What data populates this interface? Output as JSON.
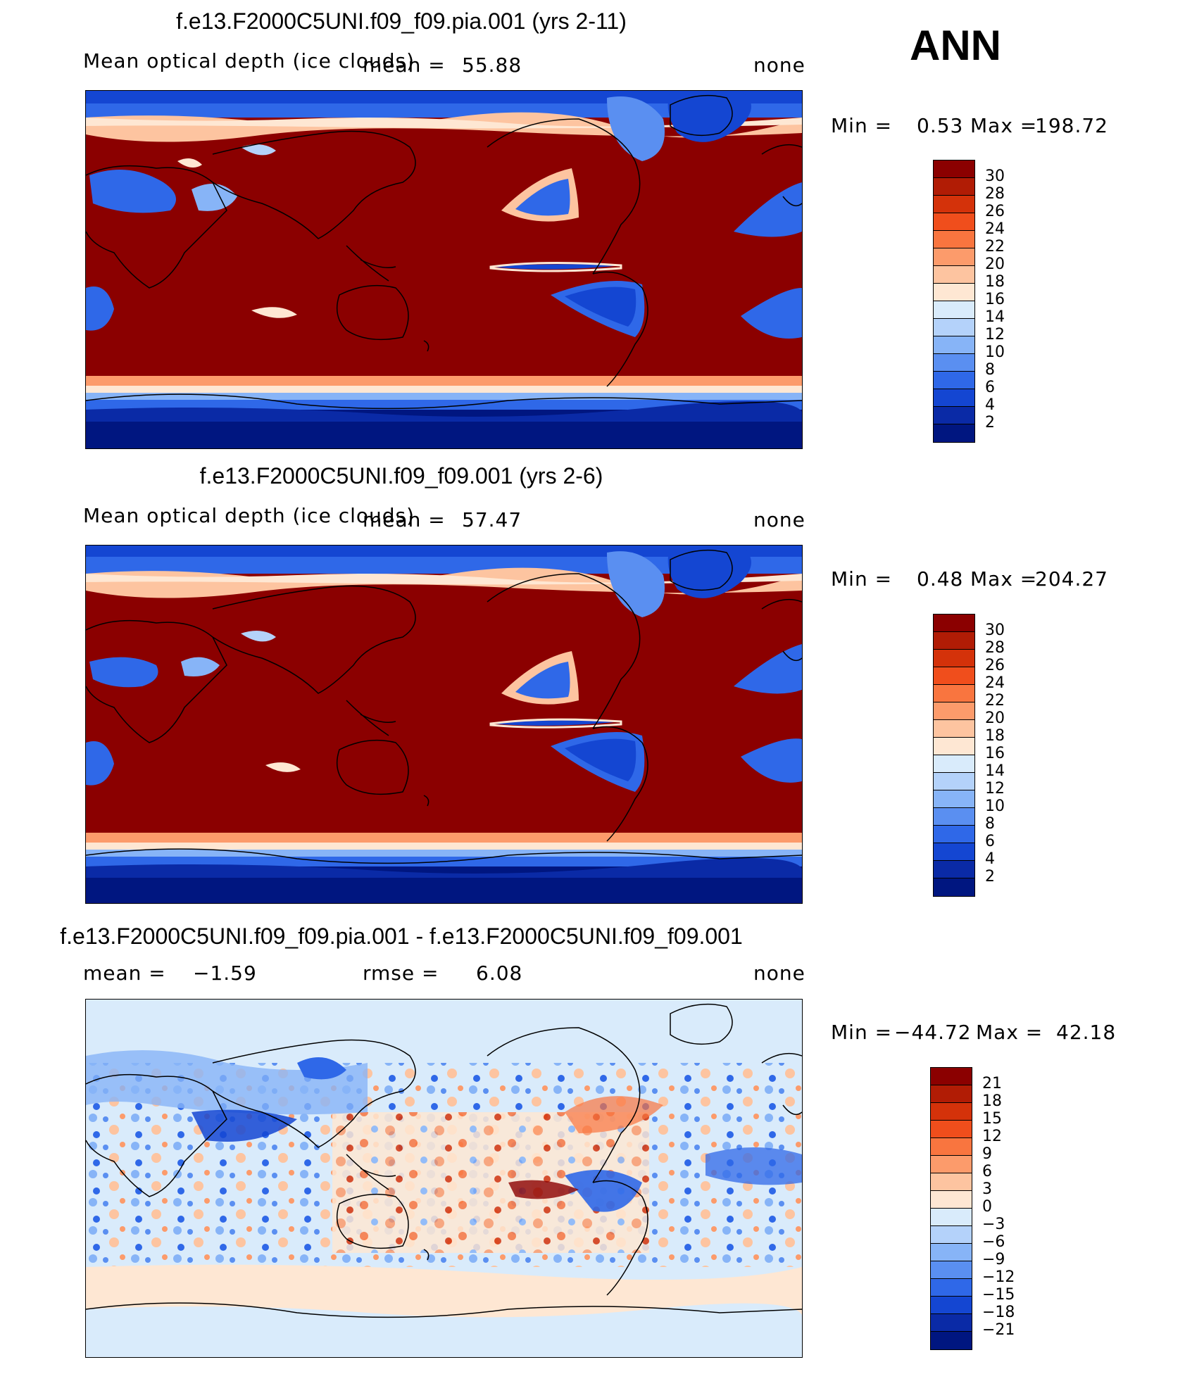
{
  "season": "ANN",
  "panels": [
    {
      "title": "f.e13.F2000C5UNI.f09_f09.pia.001 (yrs 2-11)",
      "variable": "Mean optical depth (ice clouds)",
      "stat1_label": "mean =",
      "stat1_value": "55.88",
      "units": "none",
      "min_label": "Min =",
      "min_value": "0.53",
      "max_label": "Max =",
      "max_value": "198.72",
      "colorbar": {
        "labels": [
          "30",
          "28",
          "26",
          "24",
          "22",
          "20",
          "18",
          "16",
          "14",
          "12",
          "10",
          "8",
          "6",
          "4",
          "2"
        ],
        "colors": [
          "#8b0000",
          "#b11c05",
          "#d4320a",
          "#f04e1c",
          "#f9753f",
          "#fc9b6b",
          "#fdc4a0",
          "#fee7d3",
          "#d9ebfb",
          "#b4d2fa",
          "#87b4f7",
          "#5a8ff1",
          "#2f68e8",
          "#1446d2",
          "#0a2aa6",
          "#001680"
        ]
      }
    },
    {
      "title": "f.e13.F2000C5UNI.f09_f09.001 (yrs 2-6)",
      "variable": "Mean optical depth (ice clouds)",
      "stat1_label": "mean =",
      "stat1_value": "57.47",
      "units": "none",
      "min_label": "Min =",
      "min_value": "0.48",
      "max_label": "Max =",
      "max_value": "204.27",
      "colorbar": {
        "labels": [
          "30",
          "28",
          "26",
          "24",
          "22",
          "20",
          "18",
          "16",
          "14",
          "12",
          "10",
          "8",
          "6",
          "4",
          "2"
        ],
        "colors": [
          "#8b0000",
          "#b11c05",
          "#d4320a",
          "#f04e1c",
          "#f9753f",
          "#fc9b6b",
          "#fdc4a0",
          "#fee7d3",
          "#d9ebfb",
          "#b4d2fa",
          "#87b4f7",
          "#5a8ff1",
          "#2f68e8",
          "#1446d2",
          "#0a2aa6",
          "#001680"
        ]
      }
    },
    {
      "title": "f.e13.F2000C5UNI.f09_f09.pia.001 - f.e13.F2000C5UNI.f09_f09.001",
      "stat1_label": "mean =",
      "stat1_value": "−1.59",
      "stat2_label": "rmse =",
      "stat2_value": "6.08",
      "units": "none",
      "min_label": "Min =",
      "min_value": "−44.72",
      "max_label": "Max =",
      "max_value": "42.18",
      "colorbar": {
        "labels": [
          "21",
          "18",
          "15",
          "12",
          "9",
          "6",
          "3",
          "0",
          "−3",
          "−6",
          "−9",
          "−12",
          "−15",
          "−18",
          "−21"
        ],
        "colors": [
          "#8b0000",
          "#b11c05",
          "#d4320a",
          "#f04e1c",
          "#f9753f",
          "#fc9b6b",
          "#fdc4a0",
          "#fee7d3",
          "#d9ebfb",
          "#b4d2fa",
          "#87b4f7",
          "#5a8ff1",
          "#2f68e8",
          "#1446d2",
          "#0a2aa6",
          "#001680"
        ]
      }
    }
  ]
}
